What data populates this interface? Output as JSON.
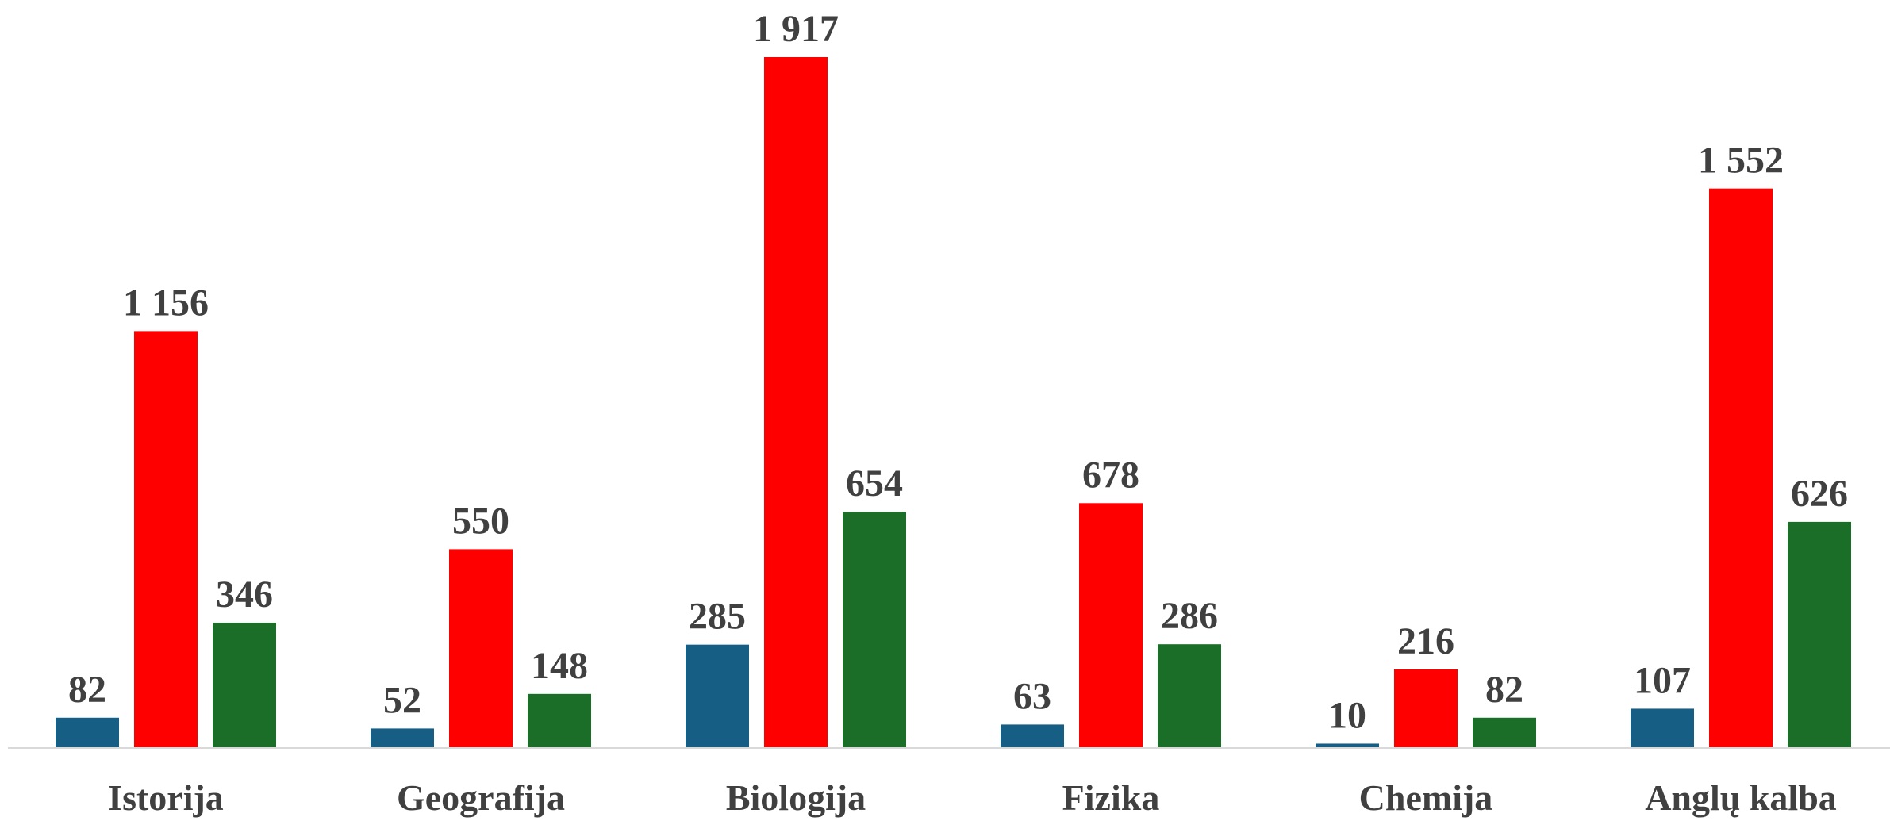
{
  "chart_data": {
    "type": "bar",
    "title": "",
    "xlabel": "",
    "ylabel": "",
    "categories": [
      "Istorija",
      "Geografija",
      "Biologija",
      "Fizika",
      "Chemija",
      "Anglų kalba"
    ],
    "series": [
      {
        "color": "#175e84",
        "values": [
          82,
          52,
          285,
          63,
          10,
          107
        ],
        "labels": [
          "82",
          "52",
          "285",
          "63",
          "10",
          "107"
        ]
      },
      {
        "color": "#ff0000",
        "values": [
          1156,
          550,
          1917,
          678,
          216,
          1552
        ],
        "labels": [
          "1 156",
          "550",
          "1 917",
          "678",
          "216",
          "1 552"
        ]
      },
      {
        "color": "#1a6e27",
        "values": [
          346,
          148,
          654,
          286,
          82,
          626
        ],
        "labels": [
          "346",
          "148",
          "654",
          "286",
          "82",
          "626"
        ]
      }
    ],
    "ylim": [
      0,
      1917
    ],
    "grid": false,
    "axis_color": "#d9d9d9"
  }
}
